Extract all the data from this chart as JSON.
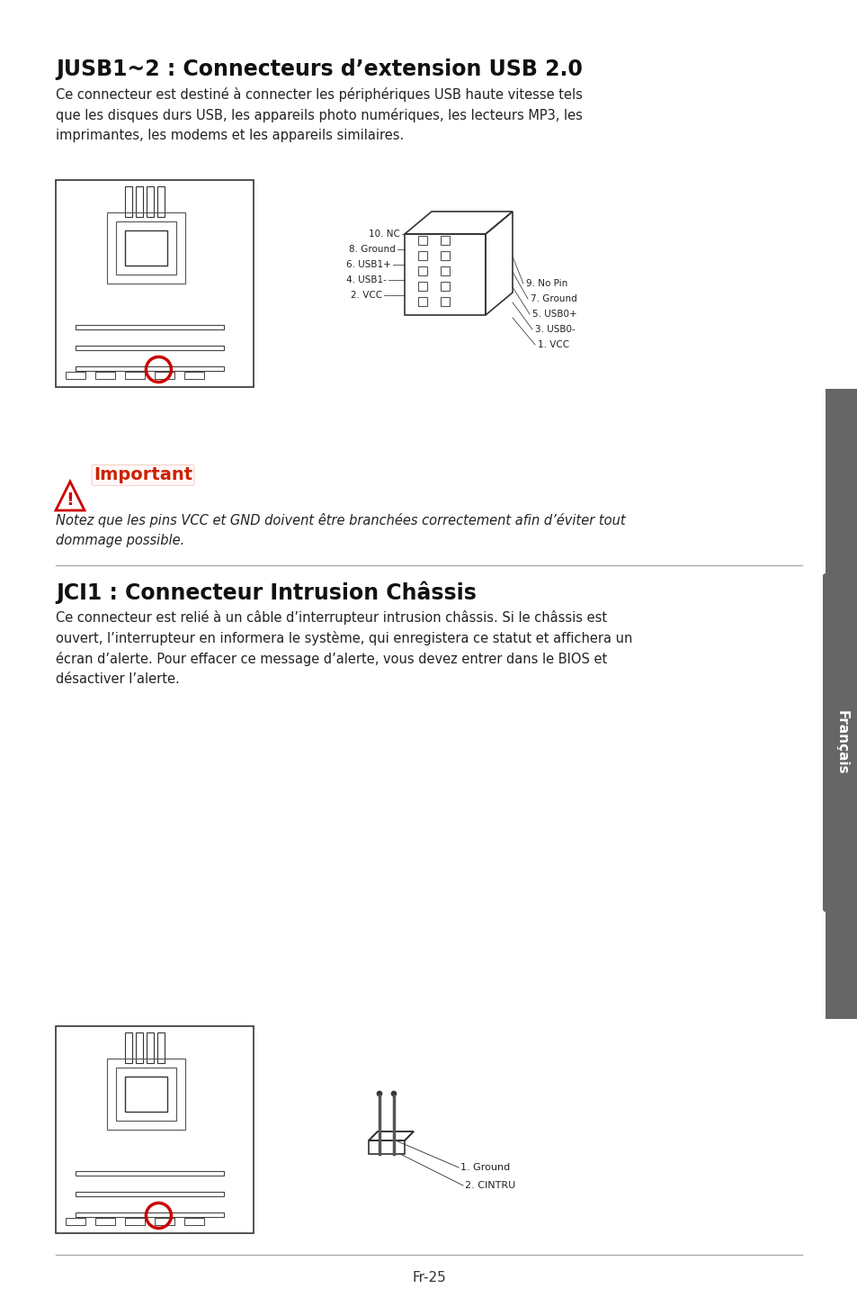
{
  "bg_color": "#ffffff",
  "title1": "JUSB1~2 : Connecteurs d’extension USB 2.0",
  "body1": "Ce connecteur est destiné à connecter les périphériques USB haute vitesse tels\nque les disques durs USB, les appareils photo numériques, les lecteurs MP3, les\nimprimantes, les modems et les appareils similaires.",
  "important_label": "Important",
  "important_text": "Notez que les pins VCC et GND doivent être branchées correctement afin d’éviter tout\ndommage possible.",
  "title2": "JCI1 : Connecteur Intrusion Châssis",
  "body2": "Ce connecteur est relié à un câble d’interrupteur intrusion châssis. Si le châssis est\nouvert, l’interrupteur en informera le système, qui enregistera ce statut et affichera un\nécran d’alerte. Pour effacer ce message d’alerte, vous devez entrer dans le BIOS et\ndésactiver l’alerte.",
  "sidebar_text": "Français",
  "footer_text": "Fr-25",
  "usb_labels_left": [
    "10. NC",
    "8. Ground",
    "6. USB1+",
    "4. USB1-",
    "2. VCC"
  ],
  "usb_labels_right": [
    "9. No Pin",
    "7. Ground",
    "5. USB0+",
    "3. USB0-",
    "1. VCC"
  ],
  "jci_labels": [
    "1. Ground",
    "2. CINTRU"
  ]
}
